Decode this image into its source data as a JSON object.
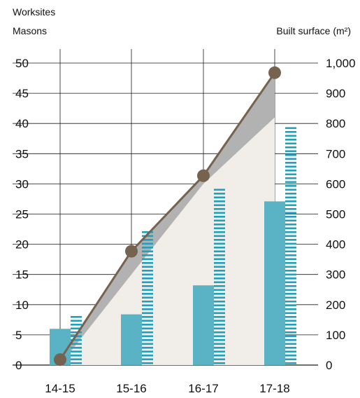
{
  "chart_data": {
    "type": "bar",
    "categories": [
      "14-15",
      "15-16",
      "16-17",
      "17-18"
    ],
    "left_axis": {
      "labels": [
        "Worksites",
        "Masons"
      ],
      "ticks": [
        "0",
        "5",
        "10",
        "15",
        "20",
        "25",
        "30",
        "35",
        "40",
        "45",
        "50"
      ],
      "ylim": [
        0,
        50
      ]
    },
    "right_axis": {
      "label": "Built surface (m²)",
      "ticks": [
        "0",
        "100",
        "200",
        "300",
        "400",
        "500",
        "600",
        "700",
        "800",
        "900",
        "1,000"
      ],
      "ylim": [
        0,
        1000
      ]
    },
    "series": [
      {
        "values": [
          6,
          8.4,
          13.2,
          27.1
        ],
        "axis": "left",
        "style": "solid-bar",
        "color": "#59b3c4"
      },
      {
        "values": [
          7.9,
          22,
          29.4,
          39.3
        ],
        "axis": "left",
        "style": "striped-bar",
        "color": "#1fa0bd"
      },
      {
        "values": [
          0,
          300,
          600,
          820
        ],
        "axis": "right",
        "style": "area",
        "color": "#f1eeea"
      },
      {
        "values": [
          18,
          377,
          627,
          968
        ],
        "axis": "right",
        "style": "line-markers",
        "color": "#75624f"
      }
    ],
    "gap_fill_color": "#b2b2b2",
    "grid": true
  }
}
